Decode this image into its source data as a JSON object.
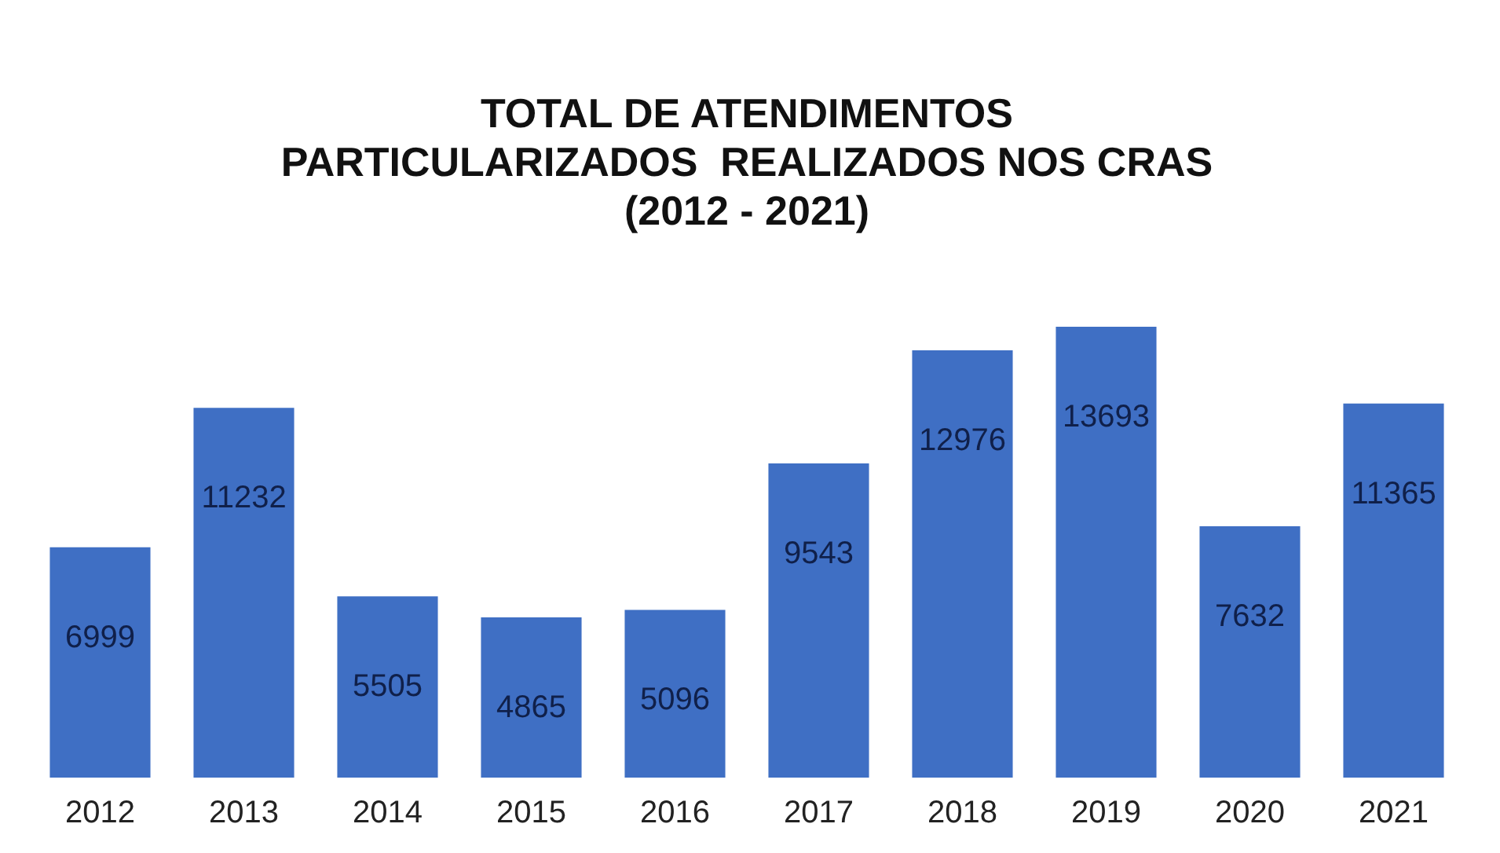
{
  "chart_data": {
    "type": "bar",
    "title": "TOTAL DE ATENDIMENTOS\nPARTICULARIZADOS  REALIZADOS NOS CRAS\n(2012 - 2021)",
    "categories": [
      "2012",
      "2013",
      "2014",
      "2015",
      "2016",
      "2017",
      "2018",
      "2019",
      "2020",
      "2021"
    ],
    "values": [
      6999,
      11232,
      5505,
      4865,
      5096,
      9543,
      12976,
      13693,
      7632,
      11365
    ],
    "color": "#3f6fc4",
    "data_labels": true
  }
}
